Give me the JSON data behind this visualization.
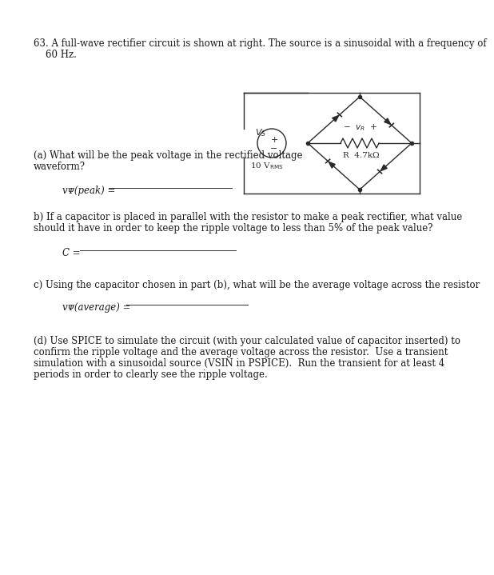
{
  "bg_color": "#ffffff",
  "text_color": "#1a1a1a",
  "circuit_color": "#2a2a2a",
  "title_line1": "63. A full-wave rectifier circuit is shown at right. The source is a sinusoidal with a frequency of",
  "title_line2": "    60 Hz.",
  "part_a_line1": "(a) What will be the peak voltage in the rectified voltage",
  "part_a_line2": "waveform?",
  "part_a_ans": "vᴪ(peak) = ",
  "part_b_line1": "b) If a capacitor is placed in parallel with the resistor to make a peak rectifier, what value",
  "part_b_line2": "should it have in order to keep the ripple voltage to less than 5% of the peak value?",
  "part_b_ans": "C = ",
  "part_c_line1": "c) Using the capacitor chosen in part (b), what will be the average voltage across the resistor",
  "part_c_ans": "vᴪ(average) = ",
  "part_d_line1": "(d) Use SPICE to simulate the circuit (with your calculated value of capacitor inserted) to",
  "part_d_line2": "confirm the ripple voltage and the average voltage across the resistor.  Use a transient",
  "part_d_line3": "simulation with a sinusoidal source (VSIN in PSPICE).  Run the transient for at least 4",
  "part_d_line4": "periods in order to clearly see the ripple voltage.",
  "font_size": 8.5,
  "small_font": 7.5
}
